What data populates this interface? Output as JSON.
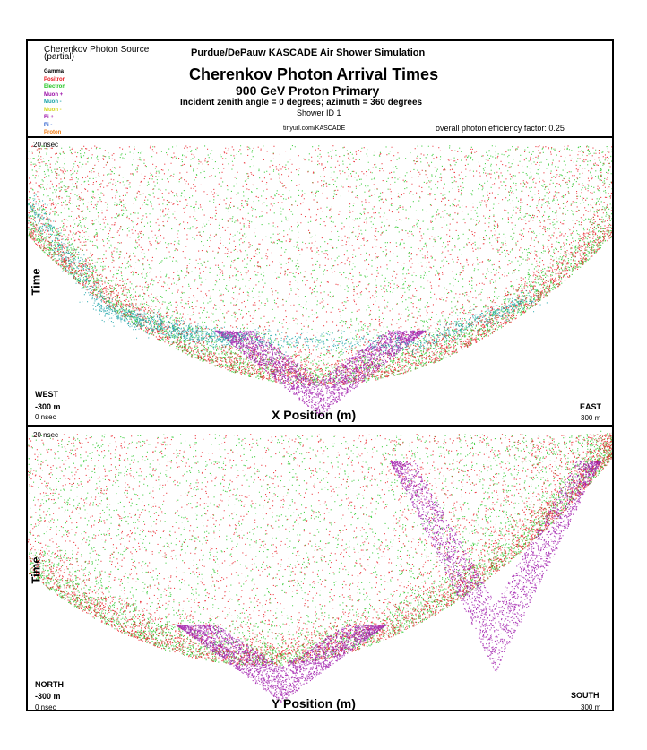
{
  "header": {
    "source_title": "Cherenkov Photon Source",
    "source_subtitle": "(partial)",
    "sim_title": "Purdue/DePauw KASCADE Air Shower Simulation",
    "main_title": "Cherenkov Photon Arrival Times",
    "primary": "900 GeV Proton Primary",
    "angles": "Incident zenith angle =  0 degrees;  azimuth =  360 degrees",
    "shower_id": "Shower ID 1",
    "url": "tinyurl.com/KASCADE",
    "efficiency": "overall photon efficiency factor: 0.25"
  },
  "legend": [
    {
      "label": "Gamma",
      "color": "#000000"
    },
    {
      "label": "Positron",
      "color": "#e8141c"
    },
    {
      "label": "Electron",
      "color": "#22c522"
    },
    {
      "label": "Muon +",
      "color": "#9b0fa8"
    },
    {
      "label": "Muon -",
      "color": "#1aa3a8"
    },
    {
      "label": "Muon -",
      "color": "#d6d61a"
    },
    {
      "label": "Pi +",
      "color": "#9b0fa8"
    },
    {
      "label": "Pi -",
      "color": "#1a50c8"
    },
    {
      "label": "Proton",
      "color": "#f07a10"
    }
  ],
  "chart_data": [
    {
      "type": "scatter",
      "xlabel": "X Position (m)",
      "ylabel": "Time",
      "xlim": [
        -300,
        300
      ],
      "ylim": [
        0,
        20
      ],
      "y_top_label": "20 nsec",
      "y_bottom_label": "0 nsec",
      "left_label": "WEST",
      "x_min_label": "-300 m",
      "right_label": "EAST",
      "x_max_label": "300 m",
      "series": [
        {
          "name": "Electron",
          "color": "#22c522",
          "shape": "bowl",
          "x_center": 0,
          "t_min": 2.5,
          "t_max": 20
        },
        {
          "name": "Positron",
          "color": "#e8141c",
          "shape": "bowl",
          "x_center": 0,
          "t_min": 2.5,
          "t_max": 20
        },
        {
          "name": "Muon +",
          "color": "#9b0fa8",
          "shape": "vee",
          "x_center": 0,
          "t_min": 0.2,
          "t_max": 6.5
        },
        {
          "name": "Muon -",
          "color": "#1aa3a8",
          "shape": "streak",
          "points": [
            [
              -300,
              16
            ],
            [
              -220,
              8
            ],
            [
              -150,
              6.5
            ],
            [
              -100,
              6
            ],
            [
              100,
              5.5
            ],
            [
              220,
              9
            ]
          ]
        }
      ]
    },
    {
      "type": "scatter",
      "xlabel": "Y Position (m)",
      "ylabel": "Time",
      "xlim": [
        -300,
        300
      ],
      "ylim": [
        0,
        20
      ],
      "y_top_label": "20 nsec",
      "y_bottom_label": "0 nsec",
      "left_label": "NORTH",
      "x_min_label": "-300 m",
      "right_label": "SOUTH",
      "x_max_label": "300 m",
      "series": [
        {
          "name": "Electron",
          "color": "#22c522",
          "shape": "bowl",
          "x_center": -60,
          "t_min": 3,
          "t_max": 20
        },
        {
          "name": "Positron",
          "color": "#e8141c",
          "shape": "bowl",
          "x_center": -60,
          "t_min": 3,
          "t_max": 20
        },
        {
          "name": "Muon +",
          "color": "#9b0fa8",
          "shape": "vee",
          "x_center": -40,
          "t_min": 0.3,
          "t_max": 6
        },
        {
          "name": "Muon +",
          "color": "#9b0fa8",
          "shape": "vee",
          "x_center": 180,
          "t_min": 2.5,
          "t_max": 18
        }
      ]
    }
  ]
}
